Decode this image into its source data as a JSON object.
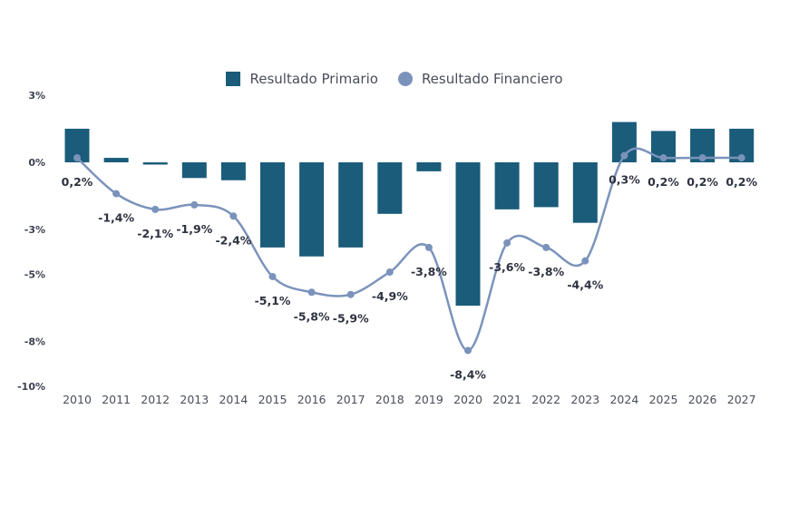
{
  "legend": {
    "primary": "Resultado Primario",
    "financial": "Resultado Financiero"
  },
  "colors": {
    "bar": "#1a5c7a",
    "line": "#7b93bb"
  },
  "chart_data": {
    "type": "bar",
    "categories": [
      "2010",
      "2011",
      "2012",
      "2013",
      "2014",
      "2015",
      "2016",
      "2017",
      "2018",
      "2019",
      "2020",
      "2021",
      "2022",
      "2023",
      "2024",
      "2025",
      "2026",
      "2027"
    ],
    "series": [
      {
        "name": "Resultado Primario",
        "type": "bar",
        "values": [
          1.5,
          0.2,
          -0.1,
          -0.7,
          -0.8,
          -3.8,
          -4.2,
          -3.8,
          -2.3,
          -0.4,
          -6.4,
          -2.1,
          -2.0,
          -2.7,
          1.8,
          1.4,
          1.5,
          1.5
        ]
      },
      {
        "name": "Resultado Financiero",
        "type": "line",
        "values": [
          0.2,
          -1.4,
          -2.1,
          -1.9,
          -2.4,
          -5.1,
          -5.8,
          -5.9,
          -4.9,
          -3.8,
          -8.4,
          -3.6,
          -3.8,
          -4.4,
          0.3,
          0.2,
          0.2,
          0.2
        ],
        "labels": [
          "0,2%",
          "-1,4%",
          "-2,1%",
          "-1,9%",
          "-2,4%",
          "-5,1%",
          "-5,8%",
          "-5,9%",
          "-4,9%",
          "-3,8%",
          "-8,4%",
          "-3,6%",
          "-3,8%",
          "-4,4%",
          "0,3%",
          "0,2%",
          "0,2%",
          "0,2%"
        ]
      }
    ],
    "yticks": [
      3,
      0,
      -3,
      -5,
      -8,
      -10
    ],
    "ytick_labels": [
      "3%",
      "0%",
      "-3%",
      "-5%",
      "-8%",
      "-10%"
    ],
    "ylim": [
      -10,
      2.5
    ],
    "grid": false,
    "legend_position": "top-center"
  }
}
